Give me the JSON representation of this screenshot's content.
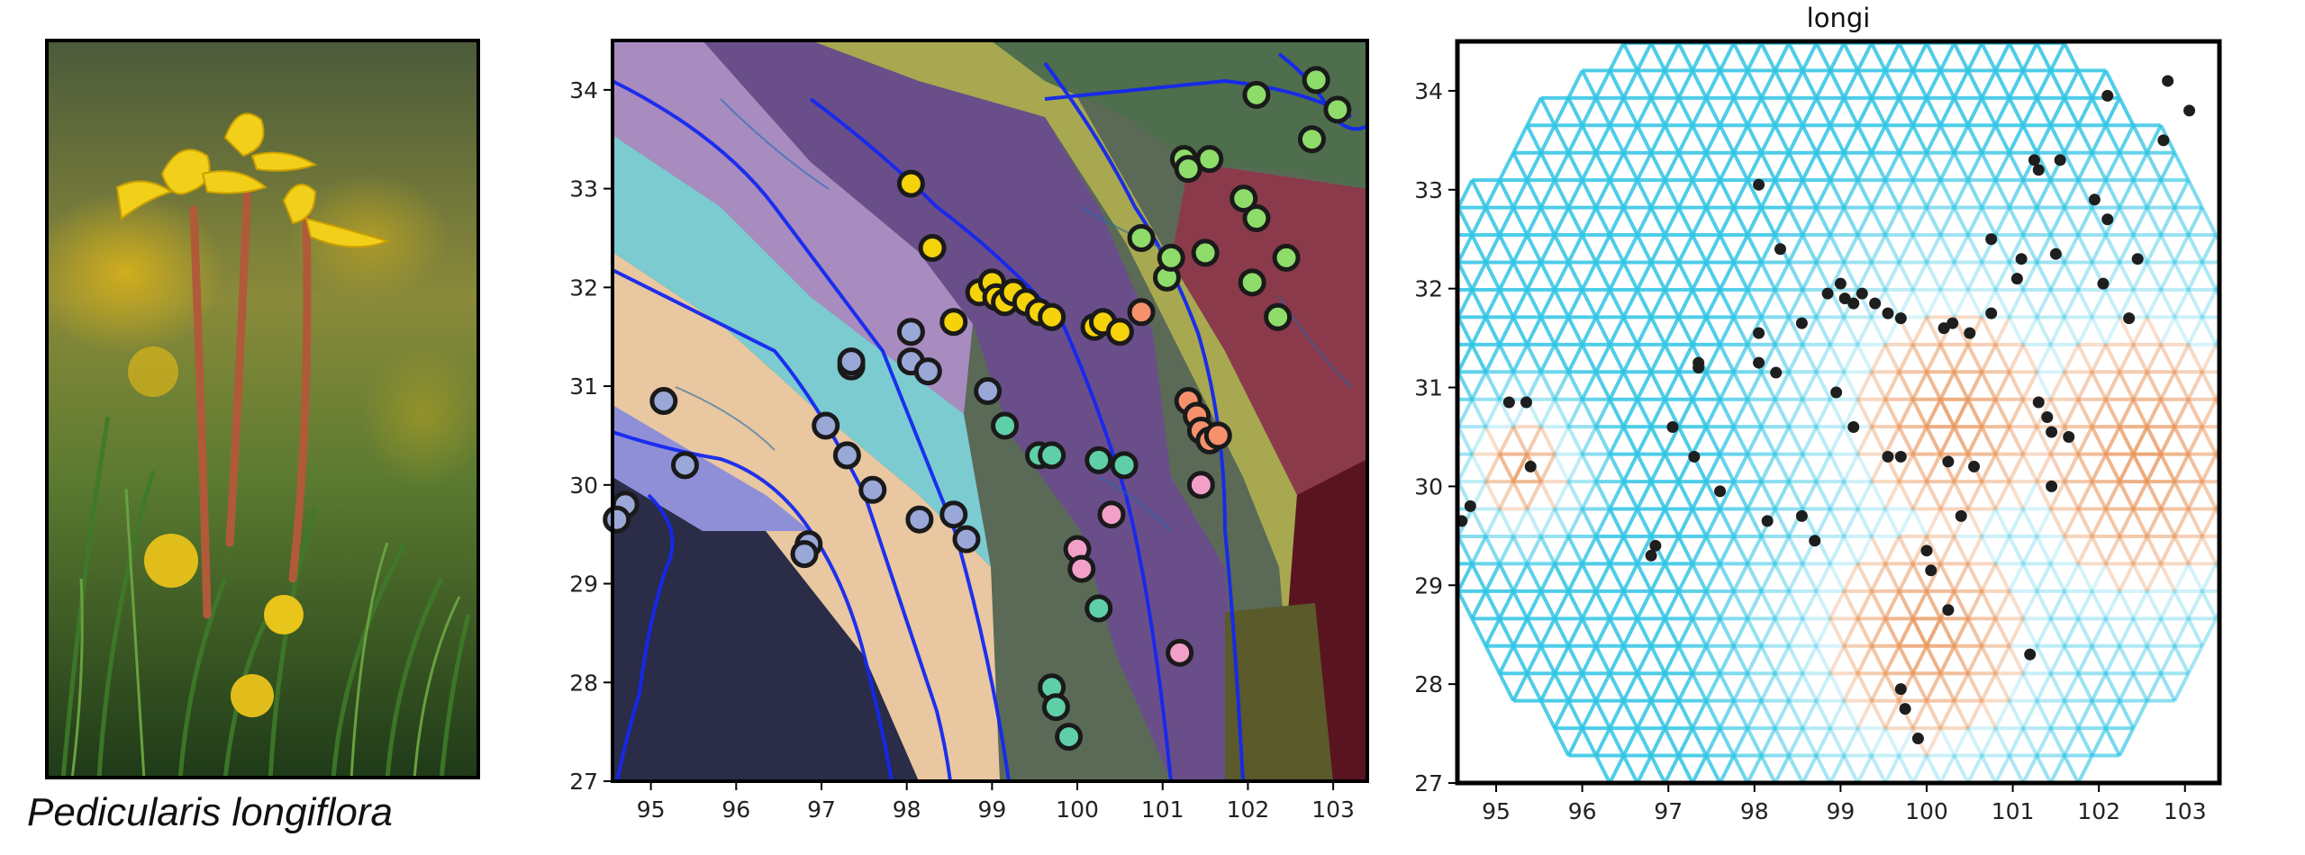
{
  "caption": "Pedicularis longiflora",
  "colors": {
    "yellow": "#f5d20a",
    "lime": "#8edc6a",
    "teal": "#5fcfa8",
    "salmon": "#f6916c",
    "pink": "#f2a0c8",
    "gray_blue": "#9aa8d8",
    "river": "#1428f0",
    "cyan_line": "#2fc4e4",
    "orange_line": "#e8955a"
  },
  "map_axes": {
    "x_ticks": [
      "95",
      "96",
      "97",
      "98",
      "99",
      "100",
      "101",
      "102",
      "103"
    ],
    "y_ticks": [
      "27",
      "28",
      "29",
      "30",
      "31",
      "32",
      "33",
      "34"
    ],
    "xlim": [
      94.55,
      103.4
    ],
    "ylim": [
      27.0,
      34.5
    ]
  },
  "chart_data": [
    {
      "type": "scatter",
      "title": "",
      "xlabel": "",
      "ylabel": "",
      "xlim": [
        94.55,
        103.4
      ],
      "ylim": [
        27.0,
        34.5
      ],
      "background": "terrain map with rivers and colored watershed regions",
      "series": [
        {
          "color": "yellow",
          "points": [
            [
              98.05,
              33.05
            ],
            [
              98.3,
              32.4
            ],
            [
              98.55,
              31.65
            ],
            [
              98.85,
              31.95
            ],
            [
              99.0,
              32.05
            ],
            [
              99.05,
              31.9
            ],
            [
              99.15,
              31.85
            ],
            [
              99.25,
              31.95
            ],
            [
              99.4,
              31.85
            ],
            [
              99.55,
              31.75
            ],
            [
              99.7,
              31.7
            ],
            [
              100.2,
              31.6
            ],
            [
              100.3,
              31.65
            ],
            [
              100.5,
              31.55
            ]
          ]
        },
        {
          "color": "lime",
          "points": [
            [
              100.75,
              32.5
            ],
            [
              101.05,
              32.1
            ],
            [
              101.1,
              32.3
            ],
            [
              101.25,
              33.3
            ],
            [
              101.3,
              33.2
            ],
            [
              101.5,
              32.35
            ],
            [
              101.55,
              33.3
            ],
            [
              101.95,
              32.9
            ],
            [
              102.05,
              32.05
            ],
            [
              102.1,
              32.7
            ],
            [
              102.1,
              33.95
            ],
            [
              102.35,
              31.7
            ],
            [
              102.45,
              32.3
            ],
            [
              102.75,
              33.5
            ],
            [
              102.8,
              34.1
            ],
            [
              103.05,
              33.8
            ]
          ]
        },
        {
          "color": "teal",
          "points": [
            [
              99.15,
              30.6
            ],
            [
              99.55,
              30.3
            ],
            [
              99.7,
              30.3
            ],
            [
              100.25,
              30.25
            ],
            [
              100.55,
              30.2
            ],
            [
              100.25,
              28.75
            ],
            [
              99.7,
              27.95
            ],
            [
              99.75,
              27.75
            ],
            [
              99.9,
              27.45
            ]
          ]
        },
        {
          "color": "salmon",
          "points": [
            [
              100.75,
              31.75
            ],
            [
              101.3,
              30.85
            ],
            [
              101.4,
              30.7
            ],
            [
              101.45,
              30.55
            ],
            [
              101.55,
              30.45
            ],
            [
              101.65,
              30.5
            ]
          ]
        },
        {
          "color": "pink",
          "points": [
            [
              100.4,
              29.7
            ],
            [
              100.0,
              29.35
            ],
            [
              100.05,
              29.15
            ],
            [
              101.45,
              30.0
            ],
            [
              101.2,
              28.3
            ]
          ]
        },
        {
          "color": "gray_blue",
          "points": [
            [
              95.15,
              30.85
            ],
            [
              95.4,
              30.2
            ],
            [
              94.7,
              29.8
            ],
            [
              94.6,
              29.65
            ],
            [
              96.85,
              29.4
            ],
            [
              96.8,
              29.3
            ],
            [
              97.05,
              30.6
            ],
            [
              97.3,
              30.3
            ],
            [
              97.35,
              31.2
            ],
            [
              97.35,
              31.25
            ],
            [
              97.6,
              29.95
            ],
            [
              98.05,
              31.55
            ],
            [
              98.05,
              31.25
            ],
            [
              98.25,
              31.15
            ],
            [
              98.15,
              29.65
            ],
            [
              98.55,
              29.7
            ],
            [
              98.7,
              29.45
            ],
            [
              98.95,
              30.95
            ]
          ]
        }
      ]
    },
    {
      "type": "scatter",
      "title": "longi",
      "xlabel": "",
      "ylabel": "",
      "xlim": [
        94.55,
        103.4
      ],
      "ylim": [
        27.0,
        34.5
      ],
      "background": "triangular grid of edges colored cyan (high) to orange (low)",
      "points": [
        [
          94.6,
          29.65
        ],
        [
          94.7,
          29.8
        ],
        [
          95.15,
          30.85
        ],
        [
          95.35,
          30.85
        ],
        [
          95.4,
          30.2
        ],
        [
          96.8,
          29.3
        ],
        [
          96.85,
          29.4
        ],
        [
          97.05,
          30.6
        ],
        [
          97.3,
          30.3
        ],
        [
          97.35,
          31.2
        ],
        [
          97.35,
          31.25
        ],
        [
          97.6,
          29.95
        ],
        [
          98.05,
          33.05
        ],
        [
          98.05,
          31.55
        ],
        [
          98.05,
          31.25
        ],
        [
          98.15,
          29.65
        ],
        [
          98.25,
          31.15
        ],
        [
          98.3,
          32.4
        ],
        [
          98.55,
          31.65
        ],
        [
          98.55,
          29.7
        ],
        [
          98.7,
          29.45
        ],
        [
          98.85,
          31.95
        ],
        [
          98.95,
          30.95
        ],
        [
          99.0,
          32.05
        ],
        [
          99.05,
          31.9
        ],
        [
          99.15,
          31.85
        ],
        [
          99.15,
          30.6
        ],
        [
          99.25,
          31.95
        ],
        [
          99.4,
          31.85
        ],
        [
          99.55,
          31.75
        ],
        [
          99.55,
          30.3
        ],
        [
          99.7,
          31.7
        ],
        [
          99.7,
          30.3
        ],
        [
          99.7,
          27.95
        ],
        [
          99.75,
          27.75
        ],
        [
          99.9,
          27.45
        ],
        [
          100.0,
          29.35
        ],
        [
          100.05,
          29.15
        ],
        [
          100.2,
          31.6
        ],
        [
          100.25,
          30.25
        ],
        [
          100.25,
          28.75
        ],
        [
          100.3,
          31.65
        ],
        [
          100.4,
          29.7
        ],
        [
          100.5,
          31.55
        ],
        [
          100.55,
          30.2
        ],
        [
          100.75,
          31.75
        ],
        [
          100.75,
          32.5
        ],
        [
          101.05,
          32.1
        ],
        [
          101.1,
          32.3
        ],
        [
          101.2,
          28.3
        ],
        [
          101.25,
          33.3
        ],
        [
          101.3,
          33.2
        ],
        [
          101.3,
          30.85
        ],
        [
          101.4,
          30.7
        ],
        [
          101.45,
          30.55
        ],
        [
          101.45,
          30.0
        ],
        [
          101.5,
          32.35
        ],
        [
          101.55,
          33.3
        ],
        [
          101.65,
          30.5
        ],
        [
          101.95,
          32.9
        ],
        [
          102.05,
          32.05
        ],
        [
          102.1,
          32.7
        ],
        [
          102.1,
          33.95
        ],
        [
          102.35,
          31.7
        ],
        [
          102.45,
          32.3
        ],
        [
          102.75,
          33.5
        ],
        [
          102.8,
          34.1
        ],
        [
          103.05,
          33.8
        ]
      ]
    }
  ]
}
